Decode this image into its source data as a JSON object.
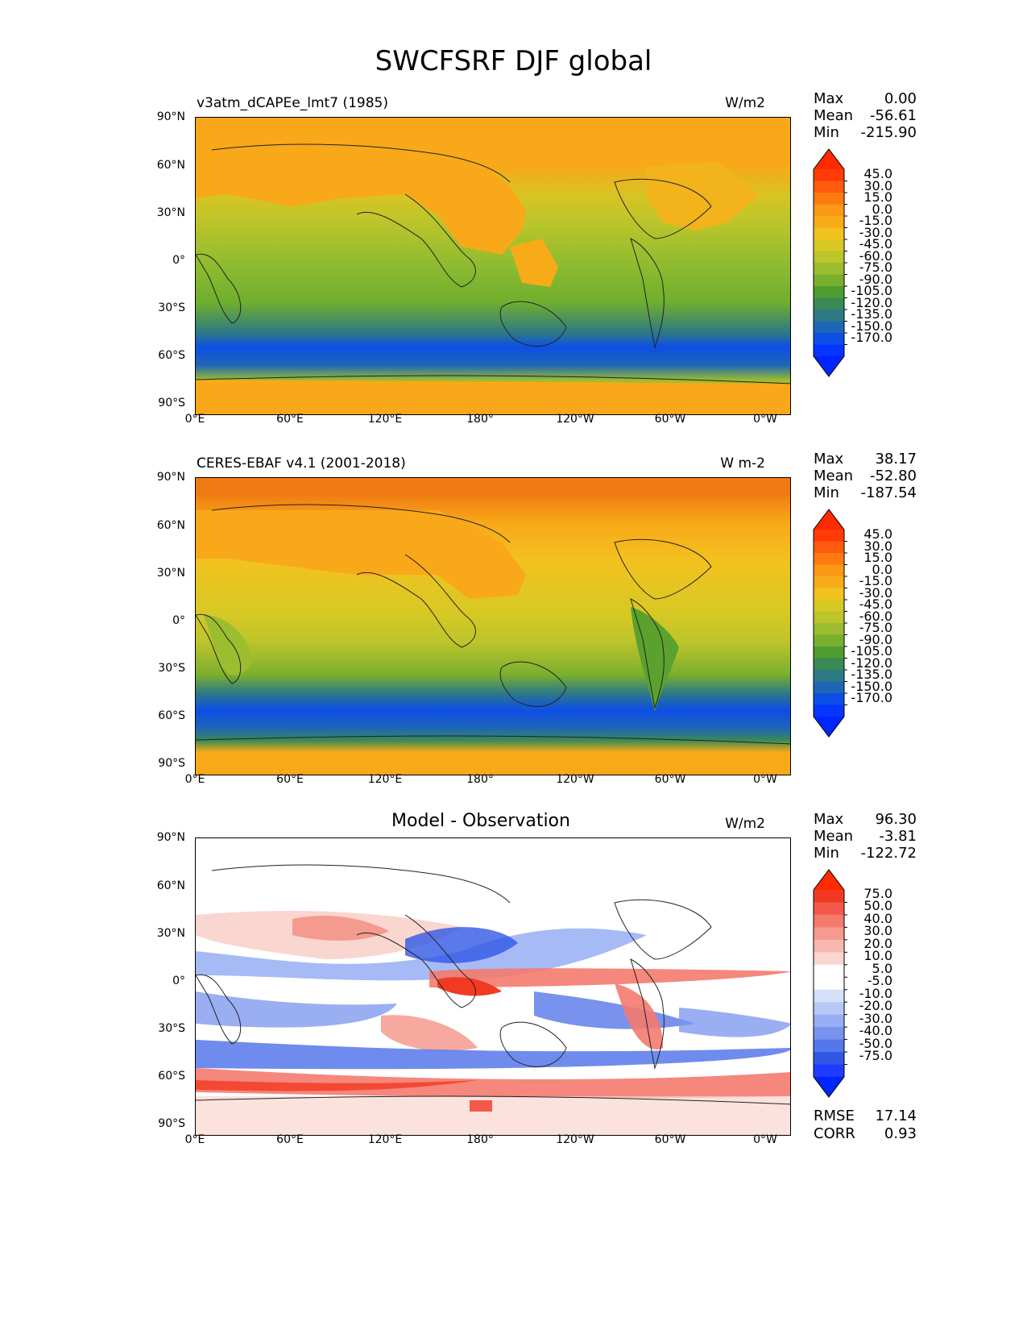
{
  "figure": {
    "title": "SWCFSRF DJF global"
  },
  "axes": {
    "y_ticks": [
      "90°N",
      "60°N",
      "30°N",
      "0°",
      "30°S",
      "60°S",
      "90°S"
    ],
    "x_ticks": [
      "0°E",
      "60°E",
      "120°E",
      "180°",
      "120°W",
      "60°W",
      "0°W"
    ]
  },
  "panels": [
    {
      "id": "model",
      "title": "v3atm_dCAPEe_lmt7 (1985)",
      "units": "W/m2",
      "stats": {
        "max_label": "Max",
        "max": "0.00",
        "mean_label": "Mean",
        "mean": "-56.61",
        "min_label": "Min",
        "min": "-215.90"
      },
      "colorbar_labels": [
        "45.0",
        "30.0",
        "15.0",
        "0.0",
        "-15.0",
        "-30.0",
        "-45.0",
        "-60.0",
        "-75.0",
        "-90.0",
        "-105.0",
        "-120.0",
        "-135.0",
        "-150.0",
        "-170.0"
      ],
      "colorbar_colors": [
        "#ff3b0a",
        "#ff5a0e",
        "#ff7a10",
        "#fb9915",
        "#f8ab18",
        "#f2c21f",
        "#d8c824",
        "#bcc52a",
        "#9bbd2f",
        "#7aaf2e",
        "#4f9d31",
        "#3a8a55",
        "#2e7a84",
        "#1e66b5",
        "#0d4ee6",
        "#0734ff"
      ],
      "overflow_colors": {
        "high": "#ff2a00",
        "low": "#0026ff"
      }
    },
    {
      "id": "obs",
      "title": "CERES-EBAF v4.1 (2001-2018)",
      "units": "W m-2",
      "stats": {
        "max_label": "Max",
        "max": "38.17",
        "mean_label": "Mean",
        "mean": "-52.80",
        "min_label": "Min",
        "min": "-187.54"
      },
      "colorbar_labels": [
        "45.0",
        "30.0",
        "15.0",
        "0.0",
        "-15.0",
        "-30.0",
        "-45.0",
        "-60.0",
        "-75.0",
        "-90.0",
        "-105.0",
        "-120.0",
        "-135.0",
        "-150.0",
        "-170.0"
      ],
      "colorbar_colors": [
        "#ff3b0a",
        "#ff5a0e",
        "#ff7a10",
        "#fb9915",
        "#f8ab18",
        "#f2c21f",
        "#d8c824",
        "#bcc52a",
        "#9bbd2f",
        "#7aaf2e",
        "#4f9d31",
        "#3a8a55",
        "#2e7a84",
        "#1e66b5",
        "#0d4ee6",
        "#0734ff"
      ],
      "overflow_colors": {
        "high": "#ff2a00",
        "low": "#0026ff"
      }
    },
    {
      "id": "diff",
      "title": "Model - Observation",
      "units": "W/m2",
      "stats": {
        "max_label": "Max",
        "max": "96.30",
        "mean_label": "Mean",
        "mean": "-3.81",
        "min_label": "Min",
        "min": "-122.72"
      },
      "colorbar_labels": [
        "75.0",
        "50.0",
        "40.0",
        "30.0",
        "20.0",
        "10.0",
        "5.0",
        "-5.0",
        "-10.0",
        "-20.0",
        "-30.0",
        "-40.0",
        "-50.0",
        "-75.0"
      ],
      "colorbar_colors": [
        "#f23a22",
        "#f4584a",
        "#f47a6e",
        "#f69a8f",
        "#f8b8af",
        "#fbd5cf",
        "#ffffff",
        "#ffffff",
        "#d6e0fb",
        "#b7c8f7",
        "#97aef3",
        "#7893ee",
        "#5677ea",
        "#3157e6",
        "#1f3bff"
      ],
      "overflow_colors": {
        "high": "#ff2a00",
        "low": "#0026ff"
      },
      "rmse_label": "RMSE",
      "rmse": "17.14",
      "corr_label": "CORR",
      "corr": "0.93"
    }
  ]
}
